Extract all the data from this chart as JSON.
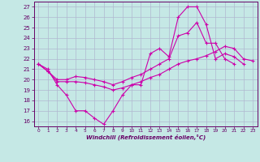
{
  "xlabel": "Windchill (Refroidissement éolien,°C)",
  "xlim": [
    -0.5,
    23.5
  ],
  "ylim": [
    15.5,
    27.5
  ],
  "yticks": [
    16,
    17,
    18,
    19,
    20,
    21,
    22,
    23,
    24,
    25,
    26,
    27
  ],
  "xticks": [
    0,
    1,
    2,
    3,
    4,
    5,
    6,
    7,
    8,
    9,
    10,
    11,
    12,
    13,
    14,
    15,
    16,
    17,
    18,
    19,
    20,
    21,
    22,
    23
  ],
  "bg_color": "#c5e8e5",
  "grid_color": "#b0b8d0",
  "line_color": "#cc00aa",
  "lines": [
    {
      "x": [
        0,
        1,
        2,
        3,
        4,
        5,
        6,
        7,
        8,
        9,
        10,
        11,
        12,
        13,
        14,
        15,
        16,
        17,
        18,
        19,
        20,
        21,
        22
      ],
      "y": [
        21.5,
        21.0,
        19.5,
        18.5,
        17.0,
        17.0,
        16.3,
        15.7,
        17.0,
        18.5,
        19.5,
        19.5,
        22.5,
        23.0,
        22.2,
        26.0,
        27.0,
        27.0,
        25.3,
        22.0,
        22.5,
        22.2,
        21.5
      ]
    },
    {
      "x": [
        0,
        1,
        2,
        3,
        4,
        5,
        6,
        7,
        8,
        9,
        10,
        11,
        12,
        13,
        14,
        15,
        16,
        17,
        18,
        19,
        20,
        21
      ],
      "y": [
        21.5,
        20.8,
        20.0,
        20.0,
        20.3,
        20.2,
        20.0,
        19.8,
        19.5,
        19.8,
        20.2,
        20.5,
        21.0,
        21.5,
        22.0,
        24.2,
        24.5,
        25.5,
        23.5,
        23.5,
        22.0,
        21.5
      ]
    },
    {
      "x": [
        0,
        1,
        2,
        3,
        4,
        5,
        6,
        7,
        8,
        9,
        10,
        11,
        12,
        13,
        14,
        15,
        16,
        17,
        18,
        19,
        20,
        21,
        22,
        23
      ],
      "y": [
        21.5,
        20.8,
        19.8,
        19.8,
        19.8,
        19.7,
        19.5,
        19.3,
        19.0,
        19.2,
        19.5,
        19.8,
        20.2,
        20.5,
        21.0,
        21.5,
        21.8,
        22.0,
        22.3,
        22.7,
        23.2,
        23.0,
        22.0,
        21.8
      ]
    }
  ]
}
